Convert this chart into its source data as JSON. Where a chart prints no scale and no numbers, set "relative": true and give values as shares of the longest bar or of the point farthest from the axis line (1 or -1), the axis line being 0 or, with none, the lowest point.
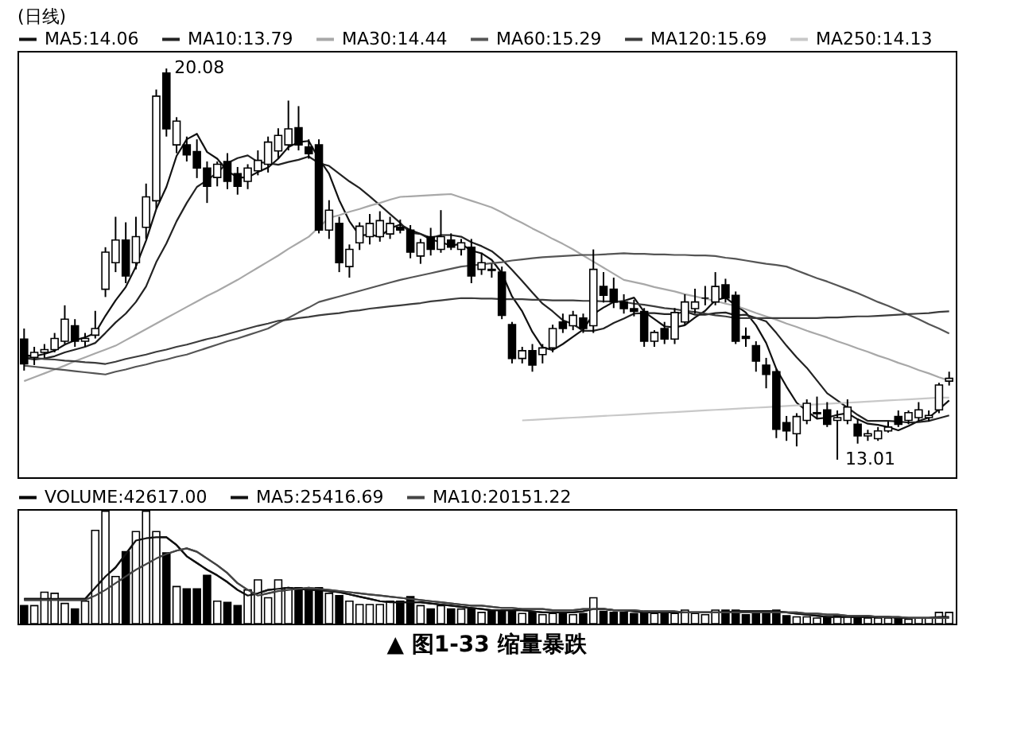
{
  "chart_data": [
    {
      "type": "candlestick",
      "title": "(日线)",
      "color": "#000000",
      "legend": "top left",
      "tick_labels": false,
      "categories": [
        null,
        null,
        null,
        null,
        null,
        null,
        null,
        null,
        null,
        null,
        null,
        null,
        null,
        null,
        null,
        null,
        null,
        null,
        null,
        null,
        null,
        null,
        null,
        null,
        null,
        null,
        null,
        null,
        null,
        null,
        null,
        null,
        null,
        null,
        null,
        null,
        null,
        null,
        null,
        null,
        null,
        null,
        null,
        null,
        null,
        null,
        null,
        null,
        null,
        null,
        null,
        null,
        null,
        null,
        null,
        null,
        null,
        null,
        null,
        null,
        null,
        null,
        null,
        null,
        null,
        null,
        null,
        null,
        null,
        null,
        null,
        null,
        null,
        null,
        null,
        null,
        null,
        null,
        null,
        null,
        null,
        null,
        null,
        null,
        null,
        null,
        null,
        null,
        null,
        null,
        null,
        null
      ],
      "ohlc": [
        [
          15.19,
          15.38,
          14.62,
          14.74
        ],
        [
          14.86,
          15.05,
          14.72,
          14.95
        ],
        [
          14.95,
          15.1,
          14.85,
          15.0
        ],
        [
          15.0,
          15.3,
          14.95,
          15.2
        ],
        [
          15.15,
          15.8,
          15.1,
          15.55
        ],
        [
          15.43,
          15.55,
          15.05,
          15.15
        ],
        [
          15.15,
          15.3,
          15.05,
          15.2
        ],
        [
          15.26,
          15.7,
          15.2,
          15.38
        ],
        [
          16.09,
          16.85,
          15.95,
          16.76
        ],
        [
          16.57,
          17.4,
          16.4,
          16.98
        ],
        [
          16.98,
          17.3,
          16.2,
          16.33
        ],
        [
          16.57,
          17.4,
          16.45,
          17.04
        ],
        [
          17.21,
          18.0,
          17.0,
          17.76
        ],
        [
          17.69,
          19.7,
          17.55,
          19.58
        ],
        [
          20.0,
          20.08,
          18.85,
          18.99
        ],
        [
          18.7,
          19.2,
          18.55,
          19.13
        ],
        [
          18.7,
          18.85,
          18.4,
          18.52
        ],
        [
          18.58,
          18.8,
          18.1,
          18.28
        ],
        [
          18.28,
          18.4,
          17.65,
          17.95
        ],
        [
          18.11,
          18.4,
          17.95,
          18.35
        ],
        [
          18.4,
          18.55,
          17.9,
          18.04
        ],
        [
          18.18,
          18.3,
          17.8,
          17.95
        ],
        [
          18.04,
          18.35,
          17.9,
          18.28
        ],
        [
          18.23,
          18.6,
          18.15,
          18.42
        ],
        [
          18.35,
          18.85,
          18.2,
          18.75
        ],
        [
          18.59,
          19.0,
          18.45,
          18.87
        ],
        [
          18.7,
          19.5,
          18.6,
          18.99
        ],
        [
          19.01,
          19.4,
          18.6,
          18.7
        ],
        [
          18.66,
          18.8,
          18.45,
          18.54
        ],
        [
          18.7,
          18.8,
          17.1,
          17.16
        ],
        [
          17.16,
          17.7,
          17.0,
          17.52
        ],
        [
          17.28,
          17.4,
          16.4,
          16.57
        ],
        [
          16.5,
          16.9,
          16.3,
          16.81
        ],
        [
          16.93,
          17.3,
          16.8,
          17.23
        ],
        [
          17.04,
          17.45,
          16.9,
          17.28
        ],
        [
          17.04,
          17.5,
          16.95,
          17.33
        ],
        [
          17.09,
          17.4,
          17.0,
          17.28
        ],
        [
          17.21,
          17.35,
          17.1,
          17.16
        ],
        [
          17.16,
          17.25,
          16.65,
          16.76
        ],
        [
          16.69,
          17.0,
          16.55,
          16.93
        ],
        [
          17.04,
          17.2,
          16.7,
          16.81
        ],
        [
          16.81,
          17.52,
          16.75,
          17.04
        ],
        [
          16.98,
          17.1,
          16.8,
          16.85
        ],
        [
          16.81,
          17.0,
          16.7,
          16.93
        ],
        [
          16.85,
          17.0,
          16.2,
          16.33
        ],
        [
          16.45,
          16.75,
          16.35,
          16.57
        ],
        [
          16.45,
          16.55,
          16.3,
          16.43
        ],
        [
          16.4,
          16.5,
          15.55,
          15.62
        ],
        [
          15.45,
          15.5,
          14.75,
          14.84
        ],
        [
          14.84,
          15.05,
          14.75,
          14.98
        ],
        [
          14.98,
          15.1,
          14.6,
          14.72
        ],
        [
          14.91,
          15.1,
          14.75,
          15.03
        ],
        [
          15.03,
          15.45,
          14.95,
          15.38
        ],
        [
          15.5,
          15.65,
          15.3,
          15.38
        ],
        [
          15.43,
          15.7,
          15.35,
          15.62
        ],
        [
          15.57,
          15.65,
          15.3,
          15.38
        ],
        [
          15.43,
          16.81,
          15.3,
          16.45
        ],
        [
          16.14,
          16.4,
          15.85,
          15.98
        ],
        [
          16.09,
          16.3,
          15.75,
          15.86
        ],
        [
          15.86,
          16.0,
          15.65,
          15.74
        ],
        [
          15.74,
          15.9,
          15.6,
          15.69
        ],
        [
          15.69,
          15.75,
          15.05,
          15.15
        ],
        [
          15.15,
          15.35,
          15.05,
          15.31
        ],
        [
          15.38,
          15.5,
          15.1,
          15.19
        ],
        [
          15.19,
          15.75,
          15.1,
          15.67
        ],
        [
          15.5,
          16.0,
          15.45,
          15.86
        ],
        [
          15.74,
          16.1,
          15.65,
          15.86
        ],
        [
          15.93,
          16.15,
          15.8,
          15.93
        ],
        [
          15.86,
          16.4,
          15.8,
          16.14
        ],
        [
          16.17,
          16.28,
          15.85,
          15.93
        ],
        [
          15.98,
          16.05,
          15.1,
          15.15
        ],
        [
          15.24,
          15.4,
          15.05,
          15.2
        ],
        [
          15.07,
          15.15,
          14.6,
          14.79
        ],
        [
          14.72,
          14.85,
          14.3,
          14.55
        ],
        [
          14.6,
          14.65,
          13.4,
          13.56
        ],
        [
          13.68,
          13.8,
          13.35,
          13.53
        ],
        [
          13.48,
          13.85,
          13.25,
          13.79
        ],
        [
          13.72,
          14.1,
          13.65,
          14.03
        ],
        [
          13.84,
          14.15,
          13.75,
          13.86
        ],
        [
          13.91,
          14.05,
          13.6,
          13.65
        ],
        [
          13.72,
          13.9,
          13.01,
          13.77
        ],
        [
          13.72,
          14.1,
          13.65,
          13.96
        ],
        [
          13.65,
          13.75,
          13.3,
          13.44
        ],
        [
          13.44,
          13.55,
          13.35,
          13.48
        ],
        [
          13.39,
          13.6,
          13.35,
          13.53
        ],
        [
          13.53,
          13.7,
          13.5,
          13.6
        ],
        [
          13.79,
          13.9,
          13.6,
          13.65
        ],
        [
          13.72,
          13.9,
          13.65,
          13.86
        ],
        [
          13.77,
          14.05,
          13.7,
          13.91
        ],
        [
          13.77,
          13.9,
          13.7,
          13.81
        ],
        [
          13.91,
          14.4,
          13.85,
          14.36
        ],
        [
          14.43,
          14.6,
          14.35,
          14.48
        ]
      ],
      "series": [
        {
          "type": "line",
          "name": "MA5:14.06",
          "color": "#111111",
          "values": [
            14.9,
            14.88,
            14.92,
            14.98,
            15.09,
            15.17,
            15.22,
            15.3,
            15.61,
            15.89,
            16.13,
            16.5,
            16.97,
            17.54,
            17.94,
            18.5,
            18.8,
            18.9,
            18.57,
            18.45,
            18.23,
            18.11,
            18.11,
            18.21,
            18.29,
            18.45,
            18.66,
            18.75,
            18.77,
            18.45,
            18.18,
            17.7,
            17.32,
            17.06,
            17.08,
            17.04,
            17.19,
            17.26,
            17.16,
            17.09,
            16.99,
            16.94,
            16.88,
            16.91,
            16.79,
            16.74,
            16.62,
            16.38,
            15.96,
            15.69,
            15.32,
            15.04,
            14.99,
            15.1,
            15.23,
            15.36,
            15.64,
            15.76,
            15.86,
            15.88,
            15.94,
            15.68,
            15.55,
            15.42,
            15.4,
            15.44,
            15.58,
            15.7,
            15.89,
            15.94,
            15.8,
            15.67,
            15.44,
            15.12,
            14.65,
            14.33,
            14.04,
            13.89,
            13.75,
            13.77,
            13.82,
            13.85,
            13.74,
            13.66,
            13.64,
            13.6,
            13.54,
            13.62,
            13.71,
            13.77,
            13.92,
            14.08
          ]
        },
        {
          "type": "line",
          "name": "MA10:13.79",
          "color": "#222222",
          "values": [
            14.85,
            14.82,
            14.84,
            14.88,
            14.95,
            15.0,
            15.05,
            15.12,
            15.3,
            15.49,
            15.65,
            15.86,
            16.14,
            16.58,
            16.92,
            17.32,
            17.65,
            17.94,
            18.06,
            18.2,
            18.37,
            18.46,
            18.51,
            18.39,
            18.37,
            18.34,
            18.39,
            18.43,
            18.49,
            18.37,
            18.32,
            18.18,
            18.04,
            17.92,
            17.77,
            17.61,
            17.45,
            17.29,
            17.11,
            17.09,
            17.02,
            17.07,
            17.07,
            17.04,
            16.94,
            16.87,
            16.78,
            16.63,
            16.44,
            16.24,
            16.03,
            15.83,
            15.69,
            15.53,
            15.46,
            15.34,
            15.34,
            15.38,
            15.48,
            15.56,
            15.65,
            15.66,
            15.66,
            15.64,
            15.64,
            15.69,
            15.63,
            15.63,
            15.66,
            15.67,
            15.62,
            15.63,
            15.57,
            15.51,
            15.3,
            15.07,
            14.86,
            14.67,
            14.44,
            14.21,
            14.08,
            13.95,
            13.82,
            13.71,
            13.71,
            13.71,
            13.7,
            13.68,
            13.69,
            13.71,
            13.76,
            13.81
          ]
        },
        {
          "type": "line",
          "name": "MA30:14.44",
          "color": "#a8a8a8",
          "values": [
            14.43,
            14.5,
            14.57,
            14.64,
            14.71,
            14.79,
            14.86,
            14.93,
            15.0,
            15.07,
            15.17,
            15.27,
            15.37,
            15.47,
            15.57,
            15.67,
            15.77,
            15.87,
            15.97,
            16.06,
            16.16,
            16.26,
            16.37,
            16.48,
            16.59,
            16.7,
            16.82,
            16.93,
            17.04,
            17.21,
            17.38,
            17.43,
            17.49,
            17.54,
            17.6,
            17.65,
            17.71,
            17.76,
            17.77,
            17.78,
            17.79,
            17.8,
            17.81,
            17.75,
            17.69,
            17.63,
            17.57,
            17.48,
            17.38,
            17.29,
            17.19,
            17.1,
            17.0,
            16.91,
            16.81,
            16.7,
            16.59,
            16.48,
            16.37,
            16.26,
            16.22,
            16.18,
            16.13,
            16.09,
            16.05,
            16.0,
            15.96,
            15.92,
            15.88,
            15.83,
            15.79,
            15.73,
            15.66,
            15.6,
            15.54,
            15.47,
            15.41,
            15.34,
            15.28,
            15.22,
            15.15,
            15.09,
            15.02,
            14.96,
            14.89,
            14.83,
            14.76,
            14.7,
            14.63,
            14.57,
            14.5,
            14.44
          ]
        },
        {
          "type": "line",
          "name": "MA60:15.29",
          "color": "#555555",
          "values": [
            14.71,
            14.69,
            14.67,
            14.65,
            14.63,
            14.61,
            14.59,
            14.57,
            14.55,
            14.6,
            14.64,
            14.69,
            14.73,
            14.78,
            14.82,
            14.87,
            14.91,
            14.97,
            15.03,
            15.09,
            15.15,
            15.2,
            15.26,
            15.32,
            15.38,
            15.48,
            15.57,
            15.67,
            15.76,
            15.86,
            15.91,
            15.96,
            16.01,
            16.06,
            16.11,
            16.16,
            16.21,
            16.26,
            16.3,
            16.34,
            16.38,
            16.42,
            16.46,
            16.5,
            16.52,
            16.54,
            16.56,
            16.58,
            16.61,
            16.63,
            16.65,
            16.67,
            16.68,
            16.69,
            16.7,
            16.71,
            16.71,
            16.72,
            16.73,
            16.74,
            16.73,
            16.73,
            16.72,
            16.72,
            16.71,
            16.71,
            16.7,
            16.7,
            16.69,
            16.66,
            16.64,
            16.61,
            16.58,
            16.55,
            16.53,
            16.5,
            16.43,
            16.36,
            16.29,
            16.23,
            16.16,
            16.09,
            16.02,
            15.94,
            15.86,
            15.79,
            15.71,
            15.63,
            15.55,
            15.46,
            15.38,
            15.29
          ]
        },
        {
          "type": "line",
          "name": "MA120:15.69",
          "color": "#3c3c3c",
          "values": [
            14.86,
            14.85,
            14.83,
            14.82,
            14.8,
            14.79,
            14.77,
            14.76,
            14.74,
            14.78,
            14.83,
            14.87,
            14.91,
            14.96,
            15.0,
            15.05,
            15.09,
            15.14,
            15.19,
            15.23,
            15.28,
            15.33,
            15.38,
            15.43,
            15.47,
            15.52,
            15.54,
            15.57,
            15.59,
            15.62,
            15.64,
            15.66,
            15.69,
            15.71,
            15.74,
            15.76,
            15.78,
            15.8,
            15.82,
            15.84,
            15.87,
            15.89,
            15.91,
            15.93,
            15.93,
            15.92,
            15.92,
            15.91,
            15.91,
            15.91,
            15.9,
            15.9,
            15.89,
            15.89,
            15.89,
            15.88,
            15.88,
            15.87,
            15.87,
            15.86,
            15.83,
            15.81,
            15.78,
            15.75,
            15.73,
            15.7,
            15.68,
            15.65,
            15.62,
            15.6,
            15.57,
            15.57,
            15.57,
            15.57,
            15.57,
            15.57,
            15.57,
            15.57,
            15.57,
            15.58,
            15.58,
            15.59,
            15.6,
            15.6,
            15.61,
            15.62,
            15.63,
            15.64,
            15.65,
            15.66,
            15.68,
            15.69
          ]
        },
        {
          "type": "line",
          "name": "MA250:14.13",
          "color": "#c8c8c8",
          "values": [
            null,
            null,
            null,
            null,
            null,
            null,
            null,
            null,
            null,
            null,
            null,
            null,
            null,
            null,
            null,
            null,
            null,
            null,
            null,
            null,
            null,
            null,
            null,
            null,
            null,
            null,
            null,
            null,
            null,
            null,
            null,
            null,
            null,
            null,
            null,
            null,
            null,
            null,
            null,
            null,
            null,
            null,
            null,
            null,
            null,
            null,
            null,
            null,
            null,
            13.72,
            13.73,
            13.74,
            13.75,
            13.76,
            13.77,
            13.78,
            13.79,
            13.8,
            13.81,
            13.82,
            13.83,
            13.84,
            13.85,
            13.86,
            13.87,
            13.88,
            13.89,
            13.9,
            13.91,
            13.92,
            13.93,
            13.94,
            13.95,
            13.96,
            13.97,
            13.98,
            13.99,
            14.0,
            14.01,
            14.02,
            14.03,
            14.04,
            14.05,
            14.06,
            14.07,
            14.08,
            14.09,
            14.1,
            14.11,
            14.12,
            14.13,
            14.13
          ]
        }
      ],
      "annotations": [
        "20.08",
        "13.01"
      ]
    },
    {
      "type": "bar",
      "relative": true,
      "legend": "top left",
      "tick_labels": false,
      "categories": [
        null,
        null,
        null,
        null,
        null,
        null,
        null,
        null,
        null,
        null,
        null,
        null,
        null,
        null,
        null,
        null,
        null,
        null,
        null,
        null,
        null,
        null,
        null,
        null,
        null,
        null,
        null,
        null,
        null,
        null,
        null,
        null,
        null,
        null,
        null,
        null,
        null,
        null,
        null,
        null,
        null,
        null,
        null,
        null,
        null,
        null,
        null,
        null,
        null,
        null,
        null,
        null,
        null,
        null,
        null,
        null,
        null,
        null,
        null,
        null,
        null,
        null,
        null,
        null,
        null,
        null,
        null,
        null,
        null,
        null,
        null,
        null,
        null,
        null,
        null,
        null,
        null,
        null,
        null,
        null,
        null,
        null,
        null,
        null,
        null,
        null,
        null,
        null,
        null,
        null,
        null,
        null
      ],
      "series": [
        {
          "type": "bar",
          "name": "VOLUME:42617.00",
          "color": "#000000",
          "values": [
            0.16,
            0.16,
            0.28,
            0.27,
            0.18,
            0.13,
            0.2,
            0.83,
            1.0,
            0.42,
            0.64,
            0.82,
            1.0,
            0.82,
            0.63,
            0.33,
            0.31,
            0.31,
            0.43,
            0.2,
            0.19,
            0.16,
            0.3,
            0.39,
            0.23,
            0.39,
            0.32,
            0.32,
            0.3,
            0.32,
            0.27,
            0.25,
            0.2,
            0.17,
            0.17,
            0.17,
            0.2,
            0.2,
            0.24,
            0.16,
            0.13,
            0.16,
            0.13,
            0.13,
            0.13,
            0.1,
            0.12,
            0.12,
            0.12,
            0.09,
            0.1,
            0.08,
            0.09,
            0.1,
            0.08,
            0.09,
            0.23,
            0.11,
            0.1,
            0.1,
            0.09,
            0.11,
            0.09,
            0.1,
            0.09,
            0.12,
            0.09,
            0.08,
            0.12,
            0.12,
            0.12,
            0.08,
            0.1,
            0.11,
            0.12,
            0.07,
            0.06,
            0.06,
            0.05,
            0.06,
            0.07,
            0.06,
            0.06,
            0.05,
            0.05,
            0.05,
            0.05,
            0.04,
            0.05,
            0.05,
            0.1,
            0.1
          ],
          "colors": [
            "#000000",
            "#ffffff",
            "#ffffff",
            "#ffffff",
            "#ffffff",
            "#000000",
            "#ffffff",
            "#ffffff",
            "#ffffff",
            "#ffffff",
            "#000000",
            "#ffffff",
            "#ffffff",
            "#ffffff",
            "#000000",
            "#ffffff",
            "#000000",
            "#000000",
            "#000000",
            "#ffffff",
            "#000000",
            "#000000",
            "#ffffff",
            "#ffffff",
            "#ffffff",
            "#ffffff",
            "#ffffff",
            "#000000",
            "#000000",
            "#000000",
            "#ffffff",
            "#000000",
            "#ffffff",
            "#ffffff",
            "#ffffff",
            "#ffffff",
            "#ffffff",
            "#000000",
            "#000000",
            "#ffffff",
            "#000000",
            "#ffffff",
            "#000000",
            "#ffffff",
            "#000000",
            "#ffffff",
            "#000000",
            "#000000",
            "#000000",
            "#ffffff",
            "#000000",
            "#ffffff",
            "#ffffff",
            "#000000",
            "#ffffff",
            "#000000",
            "#ffffff",
            "#000000",
            "#000000",
            "#000000",
            "#000000",
            "#000000",
            "#ffffff",
            "#000000",
            "#ffffff",
            "#ffffff",
            "#ffffff",
            "#ffffff",
            "#ffffff",
            "#000000",
            "#000000",
            "#000000",
            "#000000",
            "#000000",
            "#000000",
            "#000000",
            "#ffffff",
            "#ffffff",
            "#ffffff",
            "#000000",
            "#ffffff",
            "#ffffff",
            "#000000",
            "#ffffff",
            "#ffffff",
            "#ffffff",
            "#000000",
            "#ffffff",
            "#ffffff",
            "#ffffff",
            "#ffffff",
            "#ffffff"
          ]
        },
        {
          "type": "line",
          "name": "MA5:25416.69",
          "color": "#111111",
          "values": [
            0.22,
            0.22,
            0.22,
            0.22,
            0.22,
            0.22,
            0.22,
            0.32,
            0.42,
            0.5,
            0.62,
            0.74,
            0.76,
            0.77,
            0.77,
            0.7,
            0.6,
            0.54,
            0.48,
            0.43,
            0.37,
            0.3,
            0.25,
            0.27,
            0.3,
            0.31,
            0.32,
            0.31,
            0.3,
            0.3,
            0.29,
            0.28,
            0.26,
            0.24,
            0.22,
            0.2,
            0.19,
            0.19,
            0.19,
            0.19,
            0.18,
            0.17,
            0.16,
            0.15,
            0.14,
            0.13,
            0.12,
            0.12,
            0.12,
            0.12,
            0.11,
            0.1,
            0.1,
            0.1,
            0.1,
            0.11,
            0.13,
            0.13,
            0.12,
            0.12,
            0.11,
            0.1,
            0.1,
            0.1,
            0.1,
            0.1,
            0.1,
            0.1,
            0.1,
            0.1,
            0.11,
            0.11,
            0.11,
            0.11,
            0.11,
            0.1,
            0.09,
            0.08,
            0.07,
            0.06,
            0.06,
            0.06,
            0.06,
            0.06,
            0.06,
            0.06,
            0.05,
            0.05,
            0.05,
            0.05,
            0.06,
            0.06
          ]
        },
        {
          "type": "line",
          "name": "MA10:20151.22",
          "color": "#444444",
          "values": [
            0.21,
            0.21,
            0.21,
            0.21,
            0.21,
            0.21,
            0.21,
            0.25,
            0.3,
            0.36,
            0.42,
            0.48,
            0.53,
            0.58,
            0.62,
            0.65,
            0.67,
            0.64,
            0.58,
            0.52,
            0.45,
            0.36,
            0.3,
            0.25,
            0.27,
            0.29,
            0.3,
            0.31,
            0.32,
            0.31,
            0.3,
            0.29,
            0.28,
            0.27,
            0.26,
            0.25,
            0.24,
            0.23,
            0.22,
            0.21,
            0.2,
            0.19,
            0.18,
            0.17,
            0.16,
            0.16,
            0.15,
            0.14,
            0.14,
            0.13,
            0.13,
            0.13,
            0.12,
            0.12,
            0.12,
            0.13,
            0.13,
            0.13,
            0.12,
            0.12,
            0.12,
            0.11,
            0.11,
            0.11,
            0.11,
            0.1,
            0.1,
            0.1,
            0.1,
            0.1,
            0.1,
            0.1,
            0.1,
            0.1,
            0.1,
            0.1,
            0.1,
            0.09,
            0.09,
            0.08,
            0.08,
            0.07,
            0.07,
            0.07,
            0.06,
            0.06,
            0.06,
            0.05,
            0.05,
            0.05,
            0.05,
            0.05
          ]
        }
      ],
      "annotations": [
        "▲ 图1-33 缩量暴跌"
      ]
    }
  ]
}
